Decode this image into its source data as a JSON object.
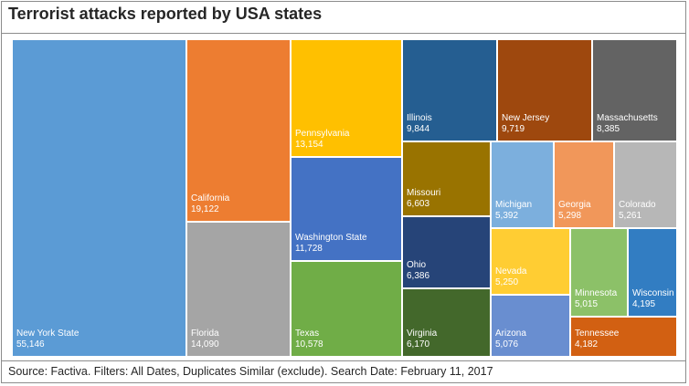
{
  "chart_data": {
    "type": "treemap",
    "title": "Terrorist attacks reported by USA states",
    "source": "Source: Factiva. Filters: All Dates, Duplicates Similar (exclude). Search Date: February 11, 2017",
    "items": [
      {
        "name": "New York State",
        "label": "55,146",
        "value": 55146,
        "color": "#5b9bd5"
      },
      {
        "name": "California",
        "label": "19,122",
        "value": 19122,
        "color": "#ed7d31"
      },
      {
        "name": "Florida",
        "label": "14,090",
        "value": 14090,
        "color": "#a5a5a5"
      },
      {
        "name": "Pennsylvania",
        "label": "13,154",
        "value": 13154,
        "color": "#ffc000"
      },
      {
        "name": "Washington State",
        "label": "11,728",
        "value": 11728,
        "color": "#4472c4"
      },
      {
        "name": "Texas",
        "label": "10,578",
        "value": 10578,
        "color": "#70ad47"
      },
      {
        "name": "Illinois",
        "label": "9,844",
        "value": 9844,
        "color": "#255e91"
      },
      {
        "name": "New Jersey",
        "label": "9,719",
        "value": 9719,
        "color": "#9e480e"
      },
      {
        "name": "Massachusetts",
        "label": "8,385",
        "value": 8385,
        "color": "#636363"
      },
      {
        "name": "Missouri",
        "label": "6,603",
        "value": 6603,
        "color": "#997300"
      },
      {
        "name": "Ohio",
        "label": "6,386",
        "value": 6386,
        "color": "#264478"
      },
      {
        "name": "Virginia",
        "label": "6,170",
        "value": 6170,
        "color": "#43682b"
      },
      {
        "name": "Michigan",
        "label": "5,392",
        "value": 5392,
        "color": "#7cafdd"
      },
      {
        "name": "Georgia",
        "label": "5,298",
        "value": 5298,
        "color": "#f1975a"
      },
      {
        "name": "Colorado",
        "label": "5,261",
        "value": 5261,
        "color": "#b7b7b7"
      },
      {
        "name": "Nevada",
        "label": "5,250",
        "value": 5250,
        "color": "#ffcd33"
      },
      {
        "name": "Arizona",
        "label": "5,076",
        "value": 5076,
        "color": "#698ed0"
      },
      {
        "name": "Minnesota",
        "label": "5,015",
        "value": 5015,
        "color": "#8cc168"
      },
      {
        "name": "Wisconsin",
        "label": "4,195",
        "value": 4195,
        "color": "#327dc2"
      },
      {
        "name": "Tennessee",
        "label": "4,182",
        "value": 4182,
        "color": "#d26012"
      }
    ]
  }
}
